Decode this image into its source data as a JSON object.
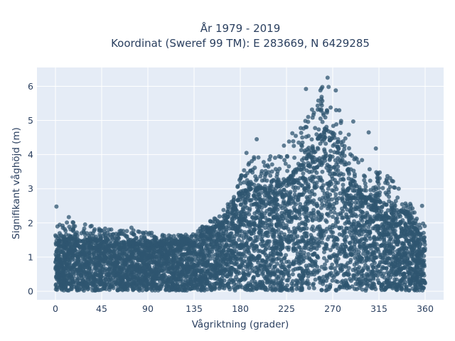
{
  "chart_data": {
    "type": "scatter",
    "title_line1": "År 1979 - 2019",
    "title_line2": "Koordinat (Sweref 99 TM): E 283669, N 6429285",
    "xlabel": "Vågriktning (grader)",
    "ylabel": "Signifikant våghöjd (m)",
    "xlim": [
      -18,
      378
    ],
    "ylim": [
      -0.25,
      6.55
    ],
    "xticks": [
      0,
      45,
      90,
      135,
      180,
      225,
      270,
      315,
      360
    ],
    "yticks": [
      0,
      1,
      2,
      3,
      4,
      5,
      6
    ],
    "grid": true,
    "legend": "none",
    "colors": {
      "background": "#e5ecf6",
      "grid": "#ffffff",
      "marker": "#2f5670",
      "text": "#2a3f5f"
    },
    "envelope": {
      "x": [
        0,
        15,
        45,
        90,
        120,
        135,
        150,
        165,
        175,
        180,
        190,
        200,
        210,
        225,
        240,
        255,
        262,
        270,
        280,
        290,
        300,
        315,
        330,
        345,
        355,
        360
      ],
      "dense_max": [
        1.4,
        1.55,
        1.45,
        1.35,
        1.4,
        1.5,
        1.75,
        2.05,
        2.45,
        2.85,
        3.0,
        3.0,
        2.95,
        3.2,
        3.65,
        4.4,
        4.75,
        4.6,
        3.8,
        3.2,
        2.75,
        2.6,
        2.45,
        2.2,
        1.6,
        1.45
      ],
      "sparse_max": [
        1.9,
        2.1,
        1.85,
        1.75,
        1.65,
        1.75,
        2.05,
        2.45,
        2.9,
        3.4,
        3.9,
        4.0,
        4.0,
        4.5,
        5.2,
        5.7,
        6.2,
        5.9,
        5.0,
        4.3,
        3.8,
        3.6,
        3.3,
        2.6,
        2.1,
        1.9
      ],
      "min": 0.02
    },
    "outliers": [
      {
        "x": 1,
        "y": 2.48
      },
      {
        "x": 13,
        "y": 2.17
      },
      {
        "x": 265,
        "y": 6.25
      },
      {
        "x": 266,
        "y": 5.98
      },
      {
        "x": 258,
        "y": 5.88
      },
      {
        "x": 273,
        "y": 5.88
      },
      {
        "x": 244,
        "y": 5.92
      },
      {
        "x": 290,
        "y": 4.97
      },
      {
        "x": 305,
        "y": 4.65
      },
      {
        "x": 234,
        "y": 4.55
      },
      {
        "x": 196,
        "y": 4.45
      },
      {
        "x": 186,
        "y": 4.05
      },
      {
        "x": 312,
        "y": 4.18
      },
      {
        "x": 357,
        "y": 2.5
      },
      {
        "x": 358,
        "y": 1.98
      },
      {
        "x": 74,
        "y": 1.86
      },
      {
        "x": 88,
        "y": 1.72
      }
    ]
  }
}
